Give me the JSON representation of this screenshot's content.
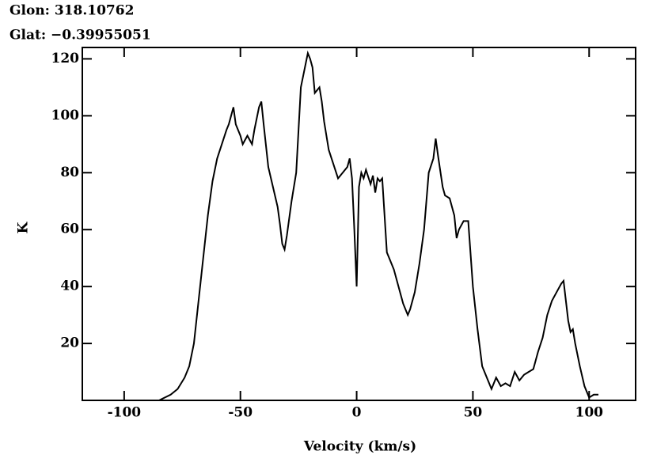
{
  "chart_data": {
    "type": "line",
    "title_lines": [
      "Glon: 318.10762",
      "Glat: −0.39955051"
    ],
    "x_label": "Velocity (km/s)",
    "y_label": "K",
    "color": "#000000",
    "xlim": [
      -118,
      120
    ],
    "ylim": [
      0,
      124
    ],
    "xticks": [
      -100,
      -50,
      0,
      50,
      100
    ],
    "yticks": [
      20,
      40,
      60,
      80,
      100,
      120
    ],
    "x": [
      -85,
      -80,
      -77,
      -74,
      -72,
      -70,
      -68,
      -66,
      -64,
      -62,
      -60,
      -58,
      -56,
      -55,
      -54,
      -53,
      -52,
      -50,
      -49,
      -47,
      -45,
      -44,
      -42,
      -41,
      -40,
      -38,
      -36,
      -34,
      -33,
      -32,
      -31,
      -30,
      -28,
      -26,
      -25,
      -24,
      -22,
      -21,
      -20,
      -19,
      -18,
      -16,
      -15,
      -14,
      -12,
      -10,
      -8,
      -6,
      -4,
      -3,
      -2,
      -1,
      0,
      1,
      2,
      3,
      4,
      6,
      7,
      8,
      9,
      10,
      11,
      12,
      13,
      14,
      16,
      18,
      20,
      22,
      23,
      25,
      27,
      29,
      31,
      33,
      34,
      35,
      37,
      38,
      40,
      42,
      43,
      44,
      46,
      48,
      50,
      52,
      54,
      56,
      58,
      60,
      62,
      64,
      66,
      68,
      70,
      72,
      74,
      76,
      78,
      80,
      82,
      84,
      86,
      88,
      89,
      90,
      91,
      92,
      93,
      94,
      96,
      98,
      100,
      102,
      104
    ],
    "values": [
      0,
      2,
      4,
      8,
      12,
      20,
      35,
      50,
      65,
      77,
      85,
      90,
      95,
      97,
      100,
      103,
      97,
      93,
      90,
      93,
      90,
      95,
      103,
      105,
      97,
      82,
      75,
      68,
      62,
      55,
      53,
      58,
      70,
      80,
      95,
      110,
      118,
      122,
      120,
      117,
      108,
      110,
      105,
      98,
      88,
      83,
      78,
      80,
      82,
      85,
      78,
      60,
      40,
      75,
      80,
      78,
      81,
      76,
      79,
      73,
      78,
      77,
      78,
      65,
      52,
      50,
      46,
      40,
      34,
      30,
      32,
      38,
      48,
      60,
      80,
      85,
      92,
      86,
      75,
      72,
      71,
      65,
      57,
      60,
      63,
      63,
      40,
      25,
      12,
      8,
      4,
      8,
      5,
      6,
      5,
      10,
      7,
      9,
      10,
      11,
      17,
      22,
      30,
      35,
      38,
      41,
      42,
      35,
      28,
      24,
      25,
      20,
      12,
      5,
      1,
      2,
      2
    ]
  }
}
